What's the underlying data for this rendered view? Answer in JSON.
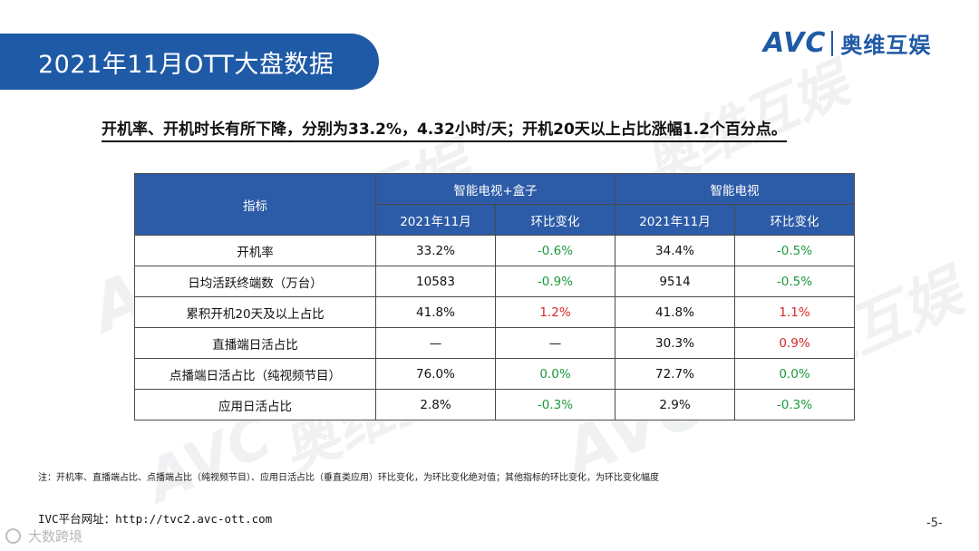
{
  "title": "2021年11月OTT大盘数据",
  "logo": {
    "en": "AVC",
    "cn": "奥维互娱"
  },
  "watermark": {
    "en": "AVC",
    "cn": "奥维互娱"
  },
  "headline": "开机率、开机时长有所下降，分别为33.2%，4.32小时/天；开机20天以上占比涨幅1.2个百分点。",
  "table": {
    "indicator_header": "指标",
    "group1": "智能电视+盒子",
    "group2": "智能电视",
    "sub_month": "2021年11月",
    "sub_change": "环比变化",
    "rows": [
      {
        "name": "开机率",
        "v1": "33.2%",
        "c1": "-0.6%",
        "v2": "34.4%",
        "c2": "-0.5%"
      },
      {
        "name": "日均活跃终端数（万台）",
        "v1": "10583",
        "c1": "-0.9%",
        "v2": "9514",
        "c2": "-0.5%"
      },
      {
        "name": "累积开机20天及以上占比",
        "v1": "41.8%",
        "c1": "1.2%",
        "v2": "41.8%",
        "c2": "1.1%"
      },
      {
        "name": "直播端日活占比",
        "v1": "—",
        "c1": "—",
        "v2": "30.3%",
        "c2": "0.9%"
      },
      {
        "name": "点播端日活占比（纯视频节目）",
        "v1": "76.0%",
        "c1": "0.0%",
        "v2": "72.7%",
        "c2": "0.0%"
      },
      {
        "name": "应用日活占比",
        "v1": "2.8%",
        "c1": "-0.3%",
        "v2": "2.9%",
        "c2": "-0.3%"
      }
    ]
  },
  "note": "注：开机率、直播端占比、点播端占比（纯视频节目）、应用日活占比（垂直类应用）环比变化，为环比变化绝对值；其他指标的环比变化，为环比变化幅度",
  "url": "IVC平台网址：http://tvc2.avc-ott.com",
  "page_number": "-5-",
  "source": "大数跨境",
  "colors": {
    "banner": "#1f5aa6",
    "header": "#2c5ba7",
    "negative": "#1a9a3a",
    "positive": "#d62828"
  }
}
